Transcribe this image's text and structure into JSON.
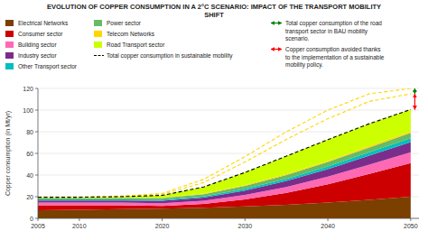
{
  "chart_data": {
    "type": "area",
    "stacked": true,
    "title": "EVOLUTION OF COPPER CONSUMPTION IN A 2°C SCENARIO: IMPACT OF THE TRANSPORT MOBILITY\nSHIFT",
    "y_label": "Copper consumption (in Mt/yr)",
    "x": [
      2005,
      2010,
      2015,
      2020,
      2025,
      2030,
      2035,
      2040,
      2045,
      2050
    ],
    "series": [
      {
        "name": "Electrical Networks",
        "type": "area",
        "color": "#7B3F00",
        "values": [
          7.5,
          8.0,
          8.5,
          9.0,
          9.8,
          11.0,
          12.5,
          14.5,
          17.0,
          20.0
        ]
      },
      {
        "name": "Consumer sector",
        "type": "area",
        "color": "#CC0000",
        "values": [
          4.5,
          4.0,
          3.5,
          2.5,
          3.5,
          6.5,
          11.0,
          17.0,
          24.0,
          31.0
        ]
      },
      {
        "name": "Building sector",
        "type": "area",
        "color": "#FF69B4",
        "values": [
          2.5,
          2.5,
          2.5,
          2.5,
          3.0,
          4.2,
          5.5,
          7.0,
          8.5,
          10.0
        ]
      },
      {
        "name": "Industry sector",
        "type": "area",
        "color": "#7B2D8B",
        "values": [
          2.0,
          2.0,
          2.0,
          2.2,
          2.8,
          4.0,
          5.5,
          7.0,
          8.5,
          9.5
        ]
      },
      {
        "name": "Other Transport sector",
        "type": "area",
        "color": "#00BFBF",
        "values": [
          1.0,
          1.0,
          1.0,
          1.0,
          1.2,
          1.6,
          2.0,
          2.5,
          3.0,
          3.5
        ]
      },
      {
        "name": "Power sector",
        "type": "area",
        "color": "#66BB66",
        "values": [
          1.0,
          1.0,
          1.2,
          1.5,
          2.0,
          2.8,
          3.5,
          4.0,
          4.5,
          5.0
        ]
      },
      {
        "name": "Telecom Networks",
        "type": "area",
        "color": "#FFD700",
        "values": [
          0.5,
          0.5,
          0.5,
          0.5,
          0.6,
          0.8,
          1.0,
          1.2,
          1.4,
          1.5
        ]
      },
      {
        "name": "Road Transport sector",
        "type": "area",
        "color": "#CCFF00",
        "values": [
          0.5,
          0.5,
          0.8,
          2.0,
          6.0,
          11.5,
          16.5,
          19.5,
          20.5,
          20.0
        ]
      },
      {
        "type": "line",
        "color": "#FFD700",
        "line_style": "dashed",
        "values": [
          19.5,
          19.5,
          20.2,
          22.0,
          33.0,
          52.0,
          73.0,
          92.0,
          108.0,
          115.0
        ]
      },
      {
        "type": "line",
        "color": "#FFD700",
        "line_style": "dashed",
        "values": [
          19.5,
          19.5,
          20.5,
          23.0,
          36.0,
          57.0,
          80.0,
          100.0,
          115.0,
          120.0
        ]
      },
      {
        "name": "Total copper consumption in sustainable mobility",
        "type": "line",
        "color": "black",
        "line_style": "dashed",
        "values": [
          19.5,
          19.5,
          20.0,
          21.2,
          29.0,
          42.4,
          57.5,
          72.7,
          87.4,
          100.5
        ]
      }
    ],
    "annotations": [
      {
        "text": "Total copper consumption of the road\ntransport sector in BAU mobility\nscenario.",
        "color": "green",
        "x": 2050.5,
        "y_from": 115.0,
        "y_to": 120.0
      },
      {
        "text": "Copper consumption avoided thanks\nto the implementation of a sustainable\nmobility policy.",
        "color": "red",
        "x": 2050.5,
        "y_from": 100.5,
        "y_to": 115.0
      }
    ],
    "xlim": [
      2005,
      2051
    ],
    "ylim": [
      0,
      120
    ],
    "xticks": [
      2005,
      2010,
      2020,
      2030,
      2040,
      2050
    ],
    "yticks": [
      0,
      20,
      40,
      60,
      80,
      100,
      120
    ],
    "grid": true
  }
}
